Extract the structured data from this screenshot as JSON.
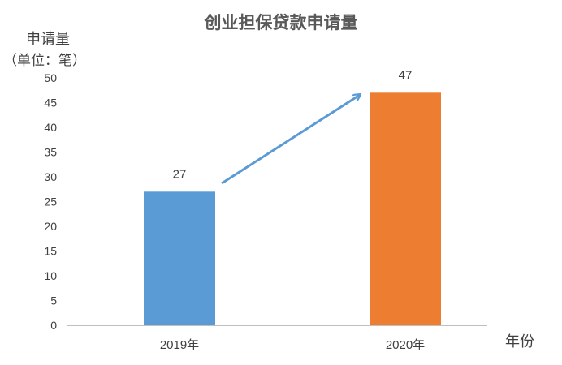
{
  "chart_data": {
    "type": "bar",
    "title": "创业担保贷款申请量",
    "ylabel": "申请量",
    "ylabel_unit": "（单位：笔）",
    "xlabel": "年份",
    "categories": [
      "2019年",
      "2020年"
    ],
    "values": [
      27,
      47
    ],
    "data_labels": [
      "27",
      "47"
    ],
    "yticks": [
      "0",
      "5",
      "10",
      "15",
      "20",
      "25",
      "30",
      "35",
      "40",
      "45",
      "50"
    ],
    "ylim": [
      0,
      50
    ],
    "grid": false,
    "legend": "none",
    "colors": [
      "#5b9bd5",
      "#ed7d31"
    ],
    "axis_color": "#bfbfbf",
    "arrow_color": "#5b9bd5",
    "annotation": "increase-arrow"
  }
}
